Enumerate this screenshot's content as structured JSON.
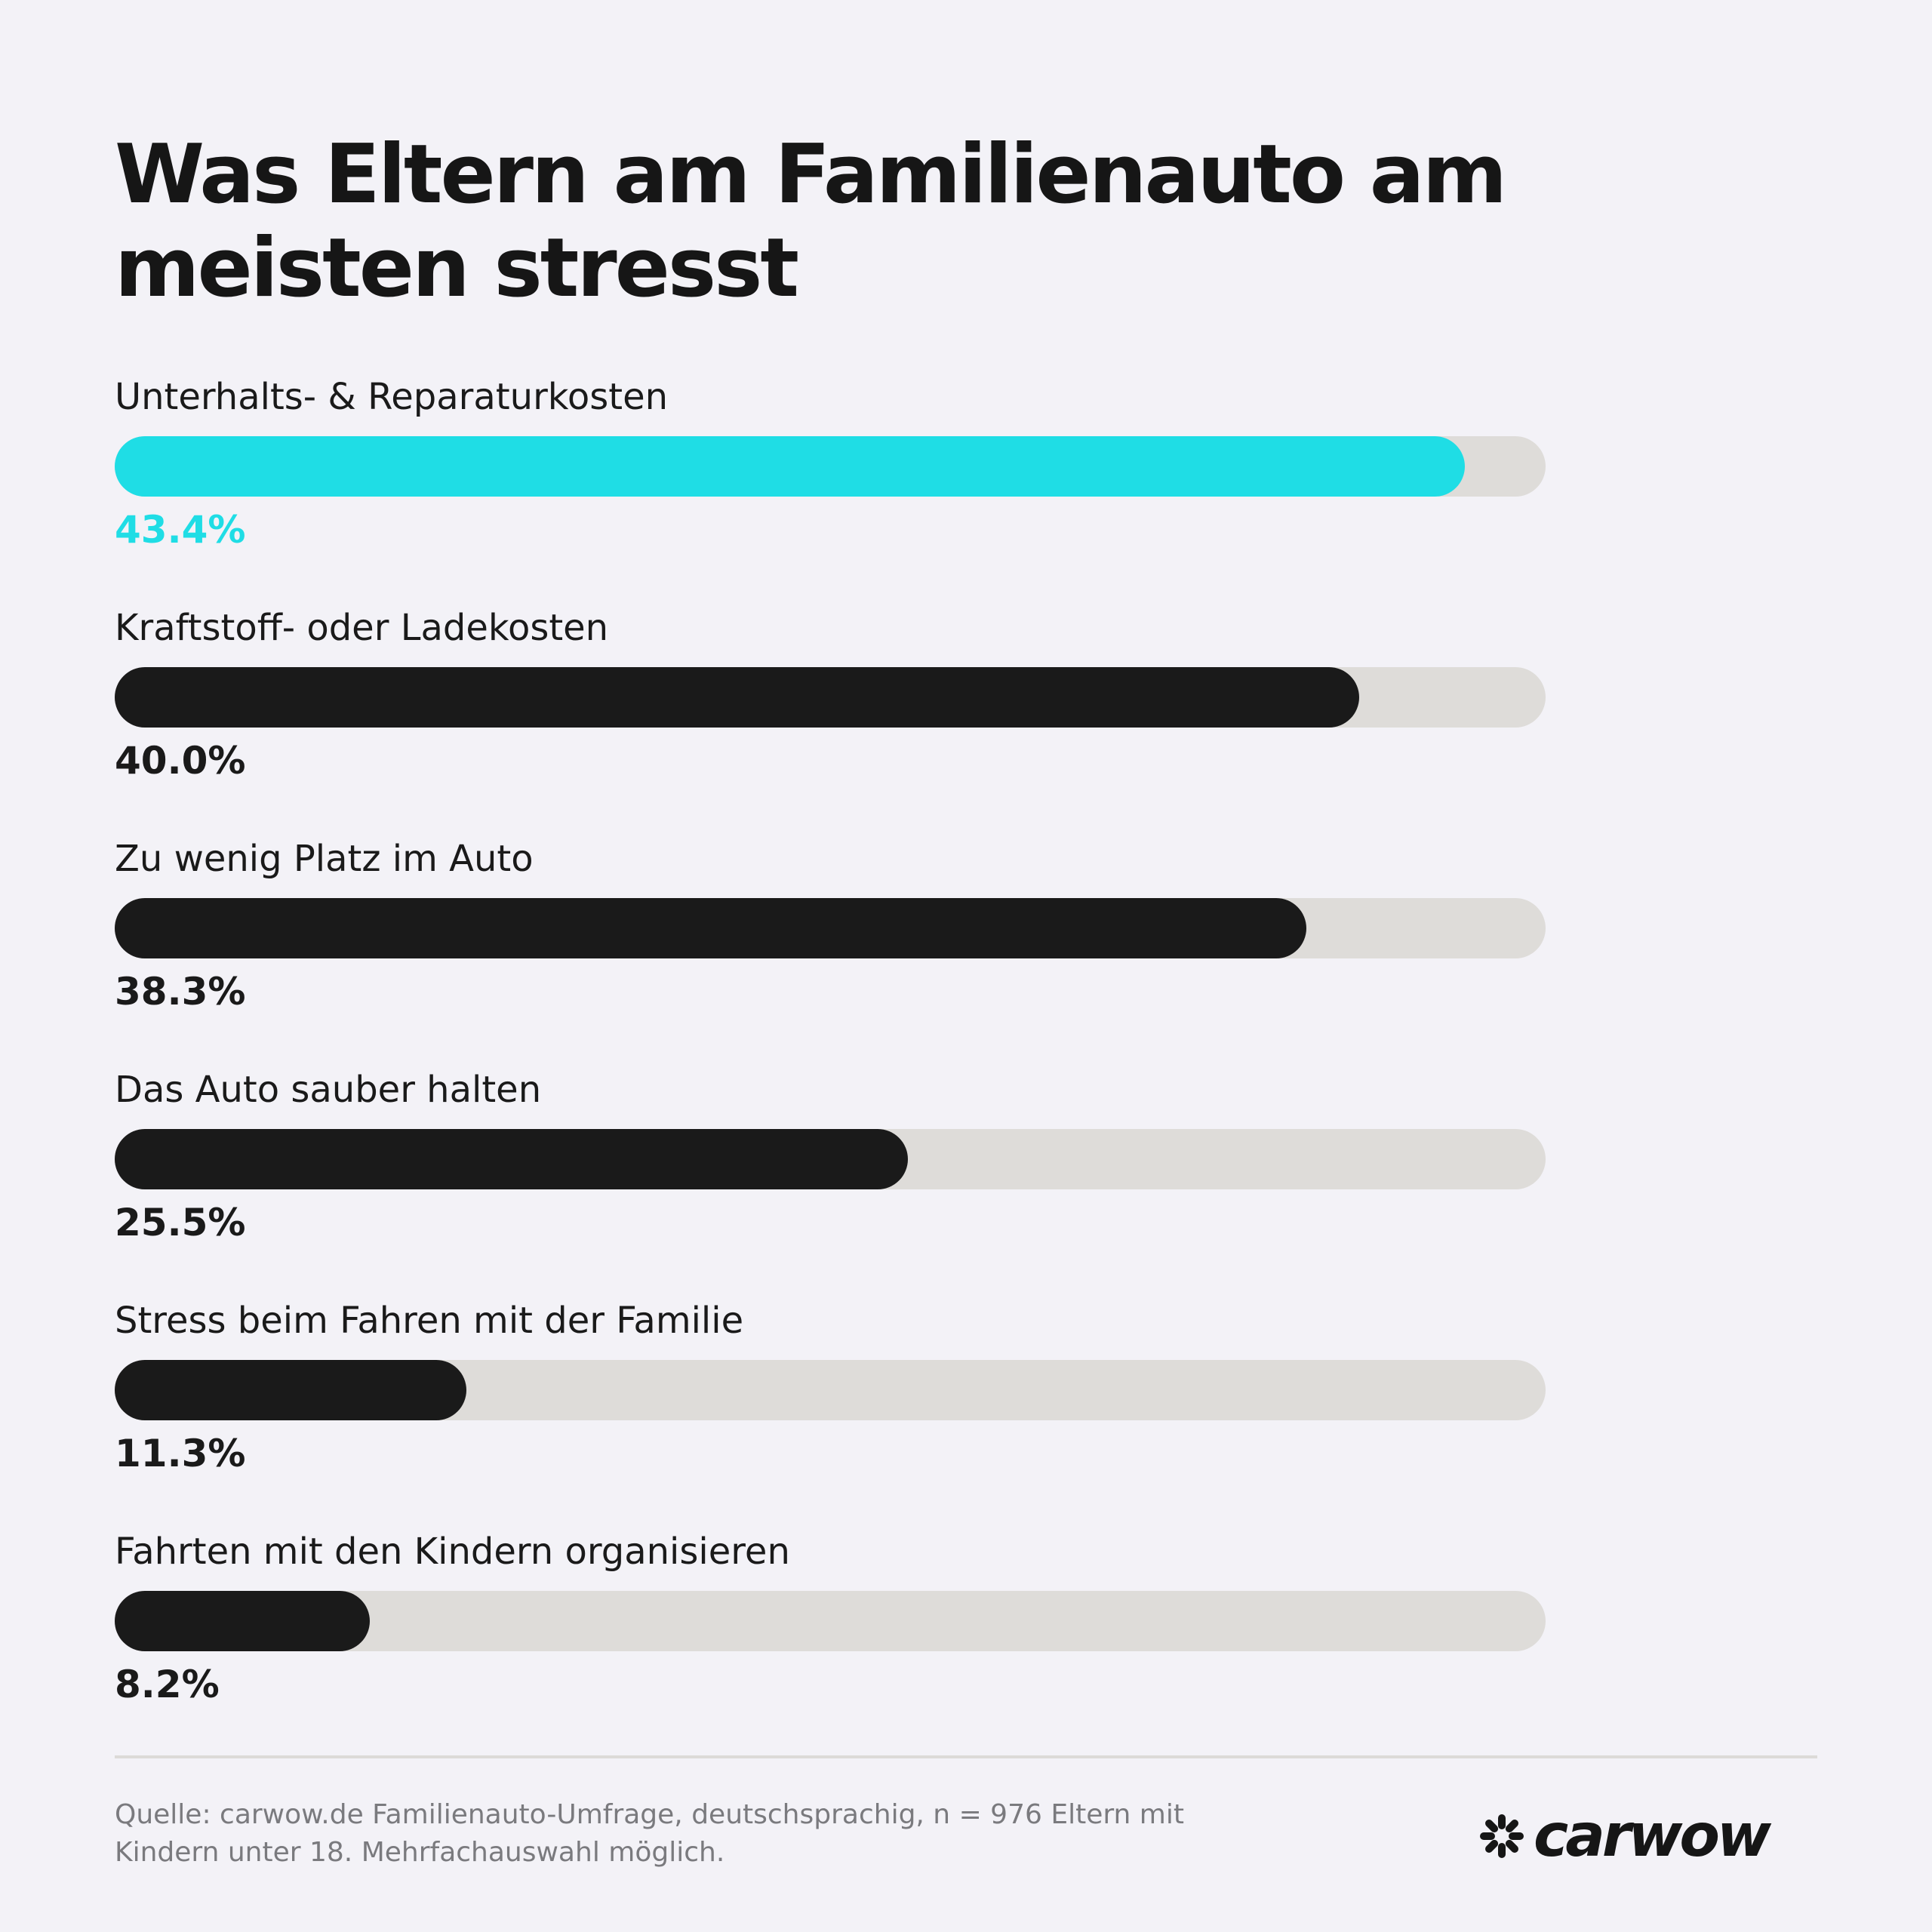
{
  "title": "Was Eltern am Familienauto am meisten stresst",
  "chart_data": {
    "type": "bar",
    "orientation": "horizontal",
    "title": "Was Eltern am Familienauto am meisten stresst",
    "unit": "%",
    "xlim": [
      0,
      46
    ],
    "categories": [
      "Unterhalts- & Reparaturkosten",
      "Kraftstoff- oder Ladekosten",
      "Zu wenig Platz im Auto",
      "Das Auto sauber halten",
      "Stress beim Fahren mit der Familie",
      "Fahrten mit den Kindern organisieren"
    ],
    "values": [
      43.4,
      40.0,
      38.3,
      25.5,
      11.3,
      8.2
    ],
    "value_labels": [
      "43.4%",
      "40.0%",
      "38.3%",
      "25.5%",
      "11.3%",
      "8.2%"
    ],
    "highlight_index": 0,
    "colors": {
      "highlight": "#1fdde5",
      "bar": "#1a1a1a",
      "track": "#dedcd9"
    },
    "grid": false,
    "legend": "none"
  },
  "footer": {
    "source_line1": "Quelle: carwow.de Familienauto-Umfrage, deutschsprachig, n = 976 Eltern mit",
    "source_line2": "Kindern unter 18. Mehrfachauswahl möglich.",
    "logo_text": "carwow",
    "logo_icon": "carwow-star-icon"
  },
  "colors": {
    "background": "#f3f2f7",
    "text": "#1a1a1a",
    "accent": "#1fdde5",
    "muted": "#7a7a7e"
  }
}
